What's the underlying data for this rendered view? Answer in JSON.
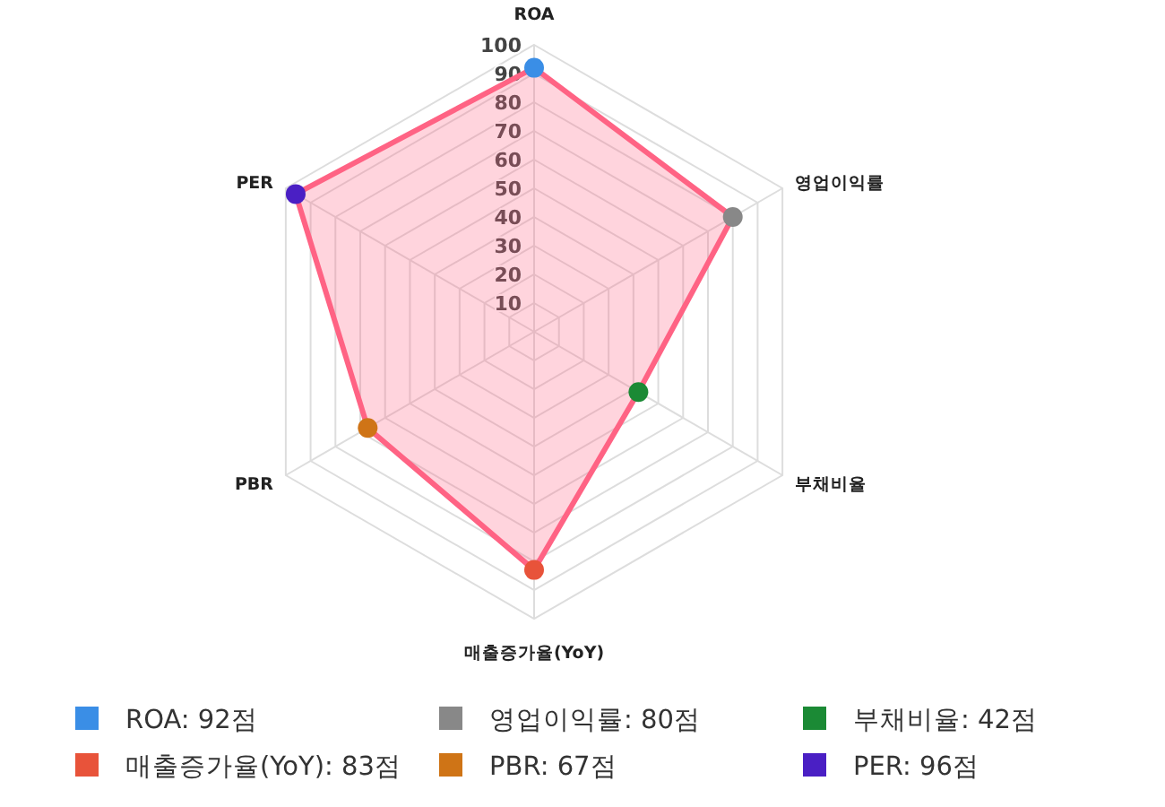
{
  "chart_data": {
    "type": "radar",
    "categories": [
      "ROA",
      "영업이익률",
      "부채비율",
      "매출증가율(YoY)",
      "PBR",
      "PER"
    ],
    "series": [
      {
        "color": "#ff6384",
        "values": [
          92,
          80,
          42,
          83,
          67,
          96
        ],
        "colors": [
          "#3a8ee6",
          "#888888",
          "#1b8a35",
          "#e8533a",
          "#cf7416",
          "#4a1fc4"
        ]
      }
    ],
    "annotations": [
      "ROA: 92점",
      "영업이익률: 80점",
      "부채비율: 42점",
      "매출증가율(YoY): 83점",
      "PBR: 67점",
      "PER: 96점"
    ],
    "ylim": [
      0,
      100
    ],
    "yticks": [
      10,
      20,
      30,
      40,
      50,
      60,
      70,
      80,
      90,
      100
    ],
    "grid": true,
    "marker": "circle"
  }
}
